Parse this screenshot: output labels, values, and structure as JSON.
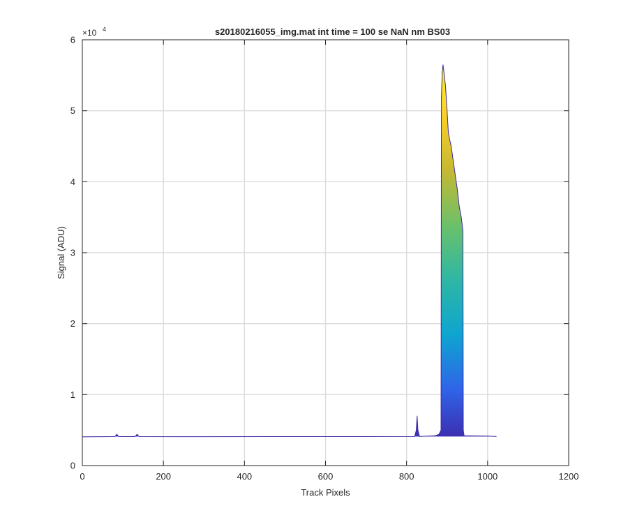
{
  "chart_data": {
    "type": "area",
    "title": "s20180216055_img.mat int time = 100 se  NaN nm BS03",
    "xlabel": "Track Pixels",
    "ylabel": "Signal (ADU)",
    "y_exponent_label": "×10",
    "y_exponent_power": "4",
    "xlim": [
      0,
      1200
    ],
    "ylim": [
      0,
      60000
    ],
    "xticks": [
      0,
      200,
      400,
      600,
      800,
      1000,
      1200
    ],
    "xtick_labels": [
      "0",
      "200",
      "400",
      "600",
      "800",
      "1000",
      "1200"
    ],
    "yticks": [
      0,
      10000,
      20000,
      30000,
      40000,
      50000,
      60000
    ],
    "ytick_labels": [
      "0",
      "1",
      "2",
      "3",
      "4",
      "5",
      "6"
    ],
    "grid": true,
    "colormap": [
      "#3e26a8",
      "#2f64e9",
      "#0ea5d0",
      "#2eb7a4",
      "#6bc16a",
      "#c6b832",
      "#fbcf26",
      "#f9fb15"
    ],
    "baseline": 4100,
    "series": [
      {
        "x": [
          0,
          80,
          85,
          90,
          130,
          135,
          140,
          300,
          500,
          700,
          820,
          824,
          826,
          828,
          832,
          870,
          880,
          885,
          886,
          888,
          890,
          893,
          896,
          900,
          903,
          906,
          910,
          915,
          920,
          925,
          930,
          935,
          937,
          939,
          940,
          942,
          1000,
          1022
        ],
        "y": [
          4050,
          4080,
          4400,
          4080,
          4080,
          4400,
          4080,
          4070,
          4080,
          4080,
          4100,
          5000,
          7000,
          5000,
          4100,
          4200,
          4400,
          5000,
          52000,
          55500,
          56500,
          55000,
          53500,
          50000,
          47000,
          46000,
          45000,
          43000,
          41000,
          39000,
          36500,
          35000,
          34000,
          33000,
          5000,
          4200,
          4150,
          4100
        ]
      }
    ]
  }
}
